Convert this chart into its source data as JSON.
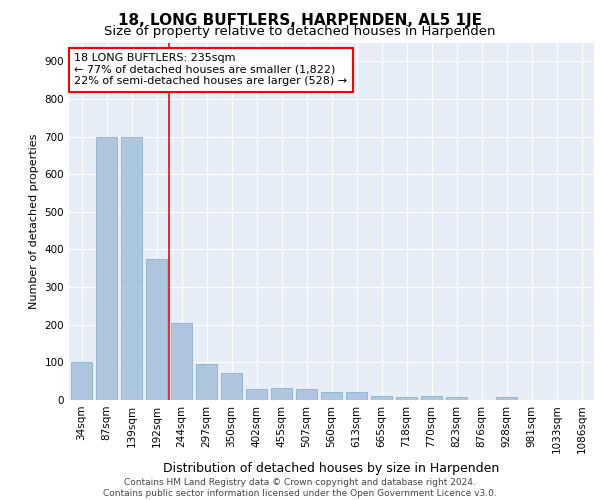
{
  "title1": "18, LONG BUFTLERS, HARPENDEN, AL5 1JE",
  "title2": "Size of property relative to detached houses in Harpenden",
  "xlabel": "Distribution of detached houses by size in Harpenden",
  "ylabel": "Number of detached properties",
  "categories": [
    "34sqm",
    "87sqm",
    "139sqm",
    "192sqm",
    "244sqm",
    "297sqm",
    "350sqm",
    "402sqm",
    "455sqm",
    "507sqm",
    "560sqm",
    "613sqm",
    "665sqm",
    "718sqm",
    "770sqm",
    "823sqm",
    "876sqm",
    "928sqm",
    "981sqm",
    "1033sqm",
    "1086sqm"
  ],
  "values": [
    100,
    700,
    700,
    375,
    205,
    95,
    72,
    30,
    32,
    28,
    20,
    20,
    10,
    7,
    10,
    8,
    0,
    8,
    0,
    0,
    0
  ],
  "bar_color": "#aec6e0",
  "bar_edge_color": "#7aaac8",
  "vline_x": 3.5,
  "vline_color": "red",
  "annotation_text": "18 LONG BUFTLERS: 235sqm\n← 77% of detached houses are smaller (1,822)\n22% of semi-detached houses are larger (528) →",
  "annotation_box_color": "white",
  "annotation_box_edge_color": "red",
  "ylim": [
    0,
    950
  ],
  "yticks": [
    0,
    100,
    200,
    300,
    400,
    500,
    600,
    700,
    800,
    900
  ],
  "background_color": "#e8eef8",
  "grid_color": "white",
  "footer_text": "Contains HM Land Registry data © Crown copyright and database right 2024.\nContains public sector information licensed under the Open Government Licence v3.0.",
  "title1_fontsize": 11,
  "title2_fontsize": 9.5,
  "xlabel_fontsize": 9,
  "ylabel_fontsize": 8,
  "tick_fontsize": 7.5,
  "annotation_fontsize": 8,
  "footer_fontsize": 6.5
}
